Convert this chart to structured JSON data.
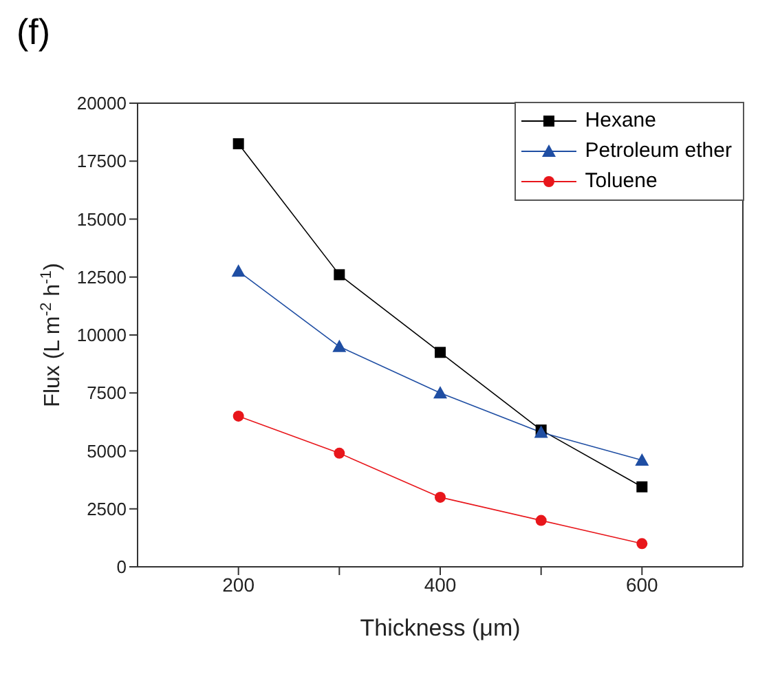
{
  "chart_data": {
    "type": "line",
    "title": "(f)",
    "xlabel": "Thickness (μm)",
    "ylabel": "Flux (L m$^{-2}$ h$^{-1}$)",
    "x": [
      200,
      300,
      400,
      500,
      600
    ],
    "series": [
      {
        "name": "Hexane",
        "color": "#000000",
        "marker": "square",
        "values": [
          18250,
          12600,
          9250,
          5900,
          3450
        ]
      },
      {
        "name": "Petroleum ether",
        "color": "#1f4ea3",
        "marker": "triangle",
        "values": [
          12750,
          9500,
          7500,
          5800,
          4600
        ]
      },
      {
        "name": "Toluene",
        "color": "#e8161b",
        "marker": "circle",
        "values": [
          6500,
          4900,
          3000,
          2000,
          1000
        ]
      }
    ],
    "xlim": [
      100,
      700
    ],
    "xticks": [
      200,
      {
        "value": 300,
        "label": null
      },
      400,
      {
        "value": 500,
        "label": null
      },
      600
    ],
    "ylim": [
      0,
      20000
    ],
    "yticks": [
      0,
      2500,
      5000,
      7500,
      10000,
      12500,
      15000,
      17500,
      20000
    ],
    "grid": false,
    "legend": "top right"
  }
}
